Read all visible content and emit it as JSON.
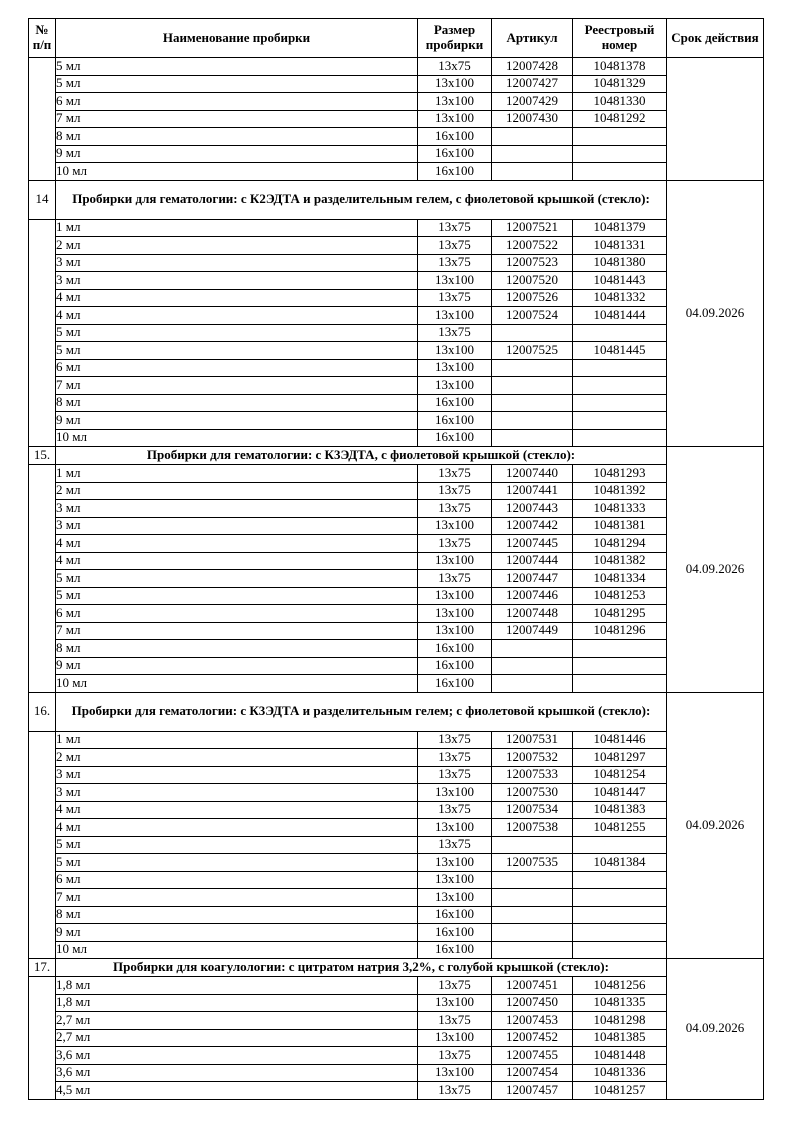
{
  "table": {
    "headers": [
      "№ п/п",
      "Наименование пробирки",
      "Размер пробирки",
      "Артикул",
      "Реестровый номер",
      "Срок действия"
    ],
    "sections": [
      {
        "number": "",
        "title": null,
        "validity": "",
        "rows": [
          [
            "5 мл",
            "13x75",
            "12007428",
            "10481378"
          ],
          [
            "5 мл",
            "13x100",
            "12007427",
            "10481329"
          ],
          [
            "6 мл",
            "13x100",
            "12007429",
            "10481330"
          ],
          [
            "7 мл",
            "13x100",
            "12007430",
            "10481292"
          ],
          [
            "8 мл",
            "16x100",
            "",
            ""
          ],
          [
            "9 мл",
            "16x100",
            "",
            ""
          ],
          [
            "10 мл",
            "16x100",
            "",
            ""
          ]
        ]
      },
      {
        "number": "14",
        "title": "Пробирки для гематологии: с К2ЭДТА и разделительным гелем, с фиолетовой крышкой (стекло):",
        "title_lines": 2,
        "validity": "04.09.2026",
        "rows": [
          [
            "1 мл",
            "13x75",
            "12007521",
            "10481379"
          ],
          [
            "2 мл",
            "13x75",
            "12007522",
            "10481331"
          ],
          [
            "3 мл",
            "13x75",
            "12007523",
            "10481380"
          ],
          [
            "3 мл",
            "13x100",
            "12007520",
            "10481443"
          ],
          [
            "4 мл",
            "13x75",
            "12007526",
            "10481332"
          ],
          [
            "4 мл",
            "13x100",
            "12007524",
            "10481444"
          ],
          [
            "5 мл",
            "13x75",
            "",
            ""
          ],
          [
            "5 мл",
            "13x100",
            "12007525",
            "10481445"
          ],
          [
            "6 мл",
            "13x100",
            "",
            ""
          ],
          [
            "7 мл",
            "13x100",
            "",
            ""
          ],
          [
            "8 мл",
            "16x100",
            "",
            ""
          ],
          [
            "9 мл",
            "16x100",
            "",
            ""
          ],
          [
            "10 мл",
            "16x100",
            "",
            ""
          ]
        ]
      },
      {
        "number": "15.",
        "title": "Пробирки для гематологии: с К3ЭДТА, с фиолетовой крышкой (стекло):",
        "title_lines": 1,
        "validity": "04.09.2026",
        "rows": [
          [
            "1 мл",
            "13x75",
            "12007440",
            "10481293"
          ],
          [
            "2 мл",
            "13x75",
            "12007441",
            "10481392"
          ],
          [
            "3 мл",
            "13x75",
            "12007443",
            "10481333"
          ],
          [
            "3 мл",
            "13x100",
            "12007442",
            "10481381"
          ],
          [
            "4 мл",
            "13x75",
            "12007445",
            "10481294"
          ],
          [
            "4 мл",
            "13x100",
            "12007444",
            "10481382"
          ],
          [
            "5 мл",
            "13x75",
            "12007447",
            "10481334"
          ],
          [
            "5 мл",
            "13x100",
            "12007446",
            "10481253"
          ],
          [
            "6 мл",
            "13x100",
            "12007448",
            "10481295"
          ],
          [
            "7 мл",
            "13x100",
            "12007449",
            "10481296"
          ],
          [
            "8 мл",
            "16x100",
            "",
            ""
          ],
          [
            "9 мл",
            "16x100",
            "",
            ""
          ],
          [
            "10 мл",
            "16x100",
            "",
            ""
          ]
        ]
      },
      {
        "number": "16.",
        "title": "Пробирки для гематологии: с К3ЭДТА и разделительным гелем; с фиолетовой крышкой (стекло):",
        "title_lines": 2,
        "validity": "04.09.2026",
        "rows": [
          [
            "1 мл",
            "13x75",
            "12007531",
            "10481446"
          ],
          [
            "2 мл",
            "13x75",
            "12007532",
            "10481297"
          ],
          [
            "3 мл",
            "13x75",
            "12007533",
            "10481254"
          ],
          [
            "3 мл",
            "13x100",
            "12007530",
            "10481447"
          ],
          [
            "4 мл",
            "13x75",
            "12007534",
            "10481383"
          ],
          [
            "4 мл",
            "13x100",
            "12007538",
            "10481255"
          ],
          [
            "5 мл",
            "13x75",
            "",
            ""
          ],
          [
            "5 мл",
            "13x100",
            "12007535",
            "10481384"
          ],
          [
            "6 мл",
            "13x100",
            "",
            ""
          ],
          [
            "7 мл",
            "13x100",
            "",
            ""
          ],
          [
            "8 мл",
            "16x100",
            "",
            ""
          ],
          [
            "9 мл",
            "16x100",
            "",
            ""
          ],
          [
            "10 мл",
            "16x100",
            "",
            ""
          ]
        ]
      },
      {
        "number": "17.",
        "title": "Пробирки для коагулологии: с цитратом натрия 3,2%, с голубой крышкой (стекло):",
        "title_lines": 1,
        "validity": "04.09.2026",
        "rows": [
          [
            "1,8 мл",
            "13x75",
            "12007451",
            "10481256"
          ],
          [
            "1,8 мл",
            "13x100",
            "12007450",
            "10481335"
          ],
          [
            "2,7 мл",
            "13x75",
            "12007453",
            "10481298"
          ],
          [
            "2,7 мл",
            "13x100",
            "12007452",
            "10481385"
          ],
          [
            "3,6 мл",
            "13x75",
            "12007455",
            "10481448"
          ],
          [
            "3,6 мл",
            "13x100",
            "12007454",
            "10481336"
          ],
          [
            "4,5 мл",
            "13x75",
            "12007457",
            "10481257"
          ]
        ]
      }
    ]
  }
}
